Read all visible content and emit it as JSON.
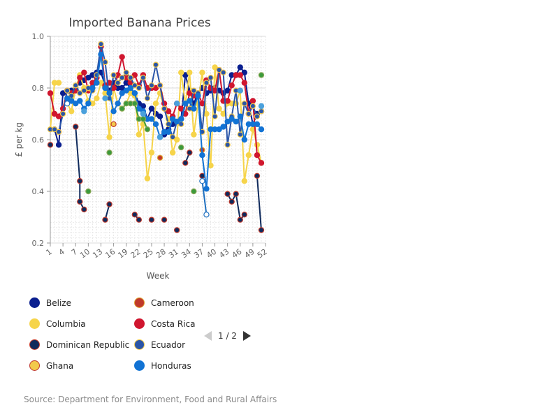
{
  "source": "Source: Department for Environment, Food and Rural Affairs",
  "pager": {
    "text": "1 / 2"
  },
  "chart_data": {
    "type": "line",
    "title": "Imported Banana Prices",
    "xlabel": "Week",
    "ylabel": "£ per kg",
    "xlim": [
      1,
      52
    ],
    "ylim": [
      0.2,
      1.0
    ],
    "x_ticks": [
      1,
      4,
      7,
      10,
      13,
      16,
      19,
      22,
      25,
      28,
      31,
      34,
      37,
      40,
      43,
      46,
      49,
      52
    ],
    "y_ticks": [
      0.2,
      0.4,
      0.6,
      0.8,
      1.0
    ],
    "grid": true,
    "legend_position": "bottom-left",
    "series": [
      {
        "name": "Belize",
        "color": "#0a1f8f",
        "border": "#0a1f8f",
        "points": [
          [
            2,
            0.64
          ],
          [
            3,
            0.58
          ],
          [
            4,
            0.78
          ],
          [
            5,
            0.79
          ],
          [
            6,
            0.79
          ],
          [
            7,
            0.8
          ],
          [
            8,
            0.82
          ],
          [
            9,
            0.83
          ],
          [
            10,
            0.84
          ],
          [
            11,
            0.85
          ],
          [
            12,
            0.86
          ],
          [
            13,
            0.86
          ],
          [
            14,
            0.81
          ],
          [
            15,
            0.79
          ],
          [
            16,
            0.82
          ],
          [
            17,
            0.8
          ],
          [
            18,
            0.8
          ],
          [
            19,
            0.82
          ],
          [
            20,
            0.8
          ],
          [
            21,
            0.78
          ],
          [
            22,
            0.74
          ],
          [
            23,
            0.73
          ],
          [
            24,
            0.68
          ],
          [
            25,
            0.72
          ],
          [
            26,
            0.7
          ],
          [
            27,
            0.69
          ],
          [
            28,
            0.62
          ],
          [
            29,
            0.64
          ],
          [
            30,
            0.66
          ],
          [
            31,
            0.67
          ],
          [
            32,
            0.68
          ],
          [
            33,
            0.85
          ],
          [
            34,
            0.79
          ],
          [
            35,
            0.74
          ],
          [
            36,
            0.78
          ],
          [
            37,
            0.8
          ],
          [
            38,
            0.78
          ],
          [
            39,
            0.79
          ],
          [
            40,
            0.8
          ],
          [
            41,
            0.79
          ],
          [
            42,
            0.78
          ],
          [
            43,
            0.79
          ],
          [
            44,
            0.85
          ],
          [
            45,
            0.85
          ],
          [
            46,
            0.88
          ],
          [
            47,
            0.86
          ],
          [
            48,
            0.74
          ],
          [
            49,
            0.66
          ],
          [
            50,
            0.7
          ],
          [
            51,
            0.71
          ]
        ]
      },
      {
        "name": "Cameroon",
        "color": "#c0392b",
        "border": "#e0a030",
        "points": [
          [
            27,
            0.53
          ],
          [
            37,
            0.56
          ]
        ]
      },
      {
        "name": "Columbia",
        "color": "#f6d44a",
        "border": "#f6d44a",
        "points": [
          [
            1,
            0.64
          ],
          [
            2,
            0.82
          ],
          [
            3,
            0.82
          ],
          [
            5,
            0.74
          ],
          [
            6,
            0.71
          ],
          [
            7,
            0.8
          ],
          [
            8,
            0.85
          ],
          [
            9,
            0.8
          ],
          [
            10,
            0.75
          ],
          [
            11,
            0.74
          ],
          [
            12,
            0.76
          ],
          [
            13,
            0.82
          ],
          [
            14,
            0.78
          ],
          [
            15,
            0.61
          ],
          [
            16,
            0.8
          ],
          [
            17,
            0.74
          ],
          [
            18,
            0.72
          ],
          [
            19,
            0.74
          ],
          [
            20,
            0.78
          ],
          [
            21,
            0.77
          ],
          [
            22,
            0.62
          ],
          [
            23,
            0.66
          ],
          [
            24,
            0.45
          ],
          [
            25,
            0.55
          ],
          [
            26,
            0.74
          ],
          [
            27,
            0.78
          ],
          [
            28,
            0.72
          ],
          [
            29,
            0.68
          ],
          [
            30,
            0.55
          ],
          [
            31,
            0.6
          ],
          [
            32,
            0.86
          ],
          [
            33,
            0.74
          ],
          [
            34,
            0.86
          ],
          [
            35,
            0.62
          ],
          [
            36,
            0.74
          ],
          [
            37,
            0.86
          ],
          [
            38,
            0.7
          ],
          [
            39,
            0.5
          ],
          [
            40,
            0.88
          ],
          [
            41,
            0.72
          ],
          [
            42,
            0.7
          ],
          [
            43,
            0.74
          ],
          [
            44,
            0.74
          ],
          [
            45,
            0.74
          ],
          [
            46,
            0.79
          ],
          [
            47,
            0.44
          ],
          [
            48,
            0.54
          ],
          [
            49,
            0.64
          ],
          [
            50,
            0.58
          ],
          [
            51,
            0.51
          ]
        ]
      },
      {
        "name": "Costa Rica",
        "color": "#d0162f",
        "border": "#d0162f",
        "points": [
          [
            1,
            0.78
          ],
          [
            2,
            0.7
          ],
          [
            3,
            0.69
          ],
          [
            4,
            0.72
          ],
          [
            5,
            0.79
          ],
          [
            6,
            0.78
          ],
          [
            7,
            0.79
          ],
          [
            8,
            0.84
          ],
          [
            9,
            0.86
          ],
          [
            10,
            0.79
          ],
          [
            11,
            0.82
          ],
          [
            12,
            0.84
          ],
          [
            13,
            0.96
          ],
          [
            14,
            0.81
          ],
          [
            15,
            0.82
          ],
          [
            16,
            0.8
          ],
          [
            17,
            0.85
          ],
          [
            18,
            0.92
          ],
          [
            19,
            0.84
          ],
          [
            20,
            0.82
          ],
          [
            21,
            0.85
          ],
          [
            22,
            0.81
          ],
          [
            23,
            0.85
          ],
          [
            24,
            0.8
          ],
          [
            25,
            0.8
          ],
          [
            26,
            0.8
          ],
          [
            27,
            0.81
          ],
          [
            28,
            0.74
          ],
          [
            29,
            0.71
          ],
          [
            30,
            0.69
          ],
          [
            31,
            0.74
          ],
          [
            32,
            0.72
          ],
          [
            33,
            0.7
          ],
          [
            34,
            0.78
          ],
          [
            35,
            0.77
          ],
          [
            36,
            0.78
          ],
          [
            37,
            0.74
          ],
          [
            38,
            0.83
          ],
          [
            39,
            0.8
          ],
          [
            40,
            0.79
          ],
          [
            41,
            0.87
          ],
          [
            42,
            0.75
          ],
          [
            43,
            0.75
          ],
          [
            44,
            0.81
          ],
          [
            45,
            0.85
          ],
          [
            46,
            0.85
          ],
          [
            47,
            0.82
          ],
          [
            48,
            0.7
          ],
          [
            49,
            0.75
          ],
          [
            50,
            0.54
          ],
          [
            51,
            0.51
          ]
        ]
      },
      {
        "name": "Dominican Republic",
        "color": "#0f2a5c",
        "border": "#c0392b",
        "points": [
          [
            1,
            0.58
          ],
          [
            3,
            0.63
          ],
          [
            7,
            0.65
          ],
          [
            8,
            0.44
          ],
          [
            8,
            0.36
          ],
          [
            9,
            0.33
          ],
          [
            14,
            0.29
          ],
          [
            15,
            0.35
          ],
          [
            21,
            0.31
          ],
          [
            22,
            0.29
          ],
          [
            25,
            0.29
          ],
          [
            28,
            0.29
          ],
          [
            31,
            0.25
          ],
          [
            33,
            0.51
          ],
          [
            34,
            0.55
          ],
          [
            37,
            0.46
          ],
          [
            43,
            0.39
          ],
          [
            44,
            0.36
          ],
          [
            45,
            0.39
          ],
          [
            46,
            0.29
          ],
          [
            47,
            0.31
          ],
          [
            50,
            0.46
          ],
          [
            51,
            0.25
          ]
        ]
      },
      {
        "name": "Ecuador",
        "color": "#2a55a8",
        "border": "#f2c94c",
        "points": [
          [
            1,
            0.64
          ],
          [
            2,
            0.64
          ],
          [
            3,
            0.63
          ],
          [
            4,
            0.7
          ],
          [
            5,
            0.79
          ],
          [
            6,
            0.77
          ],
          [
            7,
            0.81
          ],
          [
            8,
            0.78
          ],
          [
            9,
            0.79
          ],
          [
            10,
            0.8
          ],
          [
            11,
            0.79
          ],
          [
            12,
            0.85
          ],
          [
            13,
            0.97
          ],
          [
            14,
            0.9
          ],
          [
            15,
            0.76
          ],
          [
            16,
            0.85
          ],
          [
            17,
            0.82
          ],
          [
            18,
            0.84
          ],
          [
            19,
            0.86
          ],
          [
            20,
            0.84
          ],
          [
            21,
            0.81
          ],
          [
            22,
            0.8
          ],
          [
            23,
            0.84
          ],
          [
            24,
            0.76
          ],
          [
            25,
            0.81
          ],
          [
            26,
            0.89
          ],
          [
            27,
            0.81
          ],
          [
            28,
            0.72
          ],
          [
            29,
            0.66
          ],
          [
            30,
            0.61
          ],
          [
            31,
            0.67
          ],
          [
            32,
            0.66
          ],
          [
            33,
            0.74
          ],
          [
            34,
            0.72
          ],
          [
            35,
            0.79
          ],
          [
            36,
            0.78
          ],
          [
            37,
            0.63
          ],
          [
            38,
            0.82
          ],
          [
            39,
            0.84
          ],
          [
            40,
            0.69
          ],
          [
            41,
            0.87
          ],
          [
            42,
            0.86
          ],
          [
            43,
            0.58
          ],
          [
            44,
            0.69
          ],
          [
            45,
            0.79
          ],
          [
            46,
            0.62
          ],
          [
            47,
            0.74
          ],
          [
            48,
            0.7
          ],
          [
            49,
            0.73
          ],
          [
            50,
            0.69
          ],
          [
            51,
            0.71
          ]
        ]
      },
      {
        "name": "Ghana",
        "color": "#f2c94c",
        "border": "#c0392b",
        "points": [
          [
            16,
            0.66
          ]
        ]
      },
      {
        "name": "Honduras",
        "color": "#1273d4",
        "border": "#1273d4",
        "points": [
          [
            5,
            0.76
          ],
          [
            6,
            0.75
          ],
          [
            7,
            0.74
          ],
          [
            8,
            0.75
          ],
          [
            9,
            0.72
          ],
          [
            10,
            0.74
          ],
          [
            11,
            0.8
          ],
          [
            12,
            0.82
          ],
          [
            13,
            0.93
          ],
          [
            14,
            0.8
          ],
          [
            15,
            0.78
          ],
          [
            16,
            0.71
          ],
          [
            17,
            0.74
          ],
          [
            18,
            0.78
          ],
          [
            19,
            0.79
          ],
          [
            20,
            0.8
          ],
          [
            21,
            0.78
          ],
          [
            22,
            0.72
          ],
          [
            23,
            0.71
          ],
          [
            24,
            0.68
          ],
          [
            25,
            0.68
          ],
          [
            26,
            0.66
          ],
          [
            27,
            0.61
          ],
          [
            28,
            0.63
          ],
          [
            29,
            0.63
          ],
          [
            30,
            0.68
          ],
          [
            31,
            0.67
          ],
          [
            32,
            0.68
          ],
          [
            33,
            0.74
          ],
          [
            34,
            0.75
          ],
          [
            35,
            0.72
          ],
          [
            36,
            0.77
          ],
          [
            37,
            0.54
          ],
          [
            38,
            0.41
          ],
          [
            39,
            0.64
          ],
          [
            40,
            0.64
          ],
          [
            41,
            0.64
          ],
          [
            42,
            0.65
          ],
          [
            43,
            0.67
          ],
          [
            44,
            0.68
          ],
          [
            45,
            0.67
          ],
          [
            46,
            0.69
          ],
          [
            47,
            0.6
          ],
          [
            48,
            0.66
          ],
          [
            49,
            0.66
          ],
          [
            50,
            0.66
          ],
          [
            51,
            0.64
          ]
        ]
      },
      {
        "name": "",
        "color": "#3b9a3b",
        "border": "#8aa85a",
        "points": [
          [
            10,
            0.4
          ],
          [
            15,
            0.55
          ],
          [
            18,
            0.72
          ],
          [
            19,
            0.74
          ],
          [
            20,
            0.74
          ],
          [
            21,
            0.74
          ],
          [
            22,
            0.68
          ],
          [
            23,
            0.68
          ],
          [
            24,
            0.64
          ],
          [
            32,
            0.57
          ],
          [
            35,
            0.4
          ],
          [
            51,
            0.85
          ]
        ]
      },
      {
        "name": "",
        "color": "#4aa0dc",
        "border": "#4aa0dc",
        "points": [
          [
            9,
            0.71
          ],
          [
            14,
            0.76
          ],
          [
            23,
            0.7
          ],
          [
            27,
            0.61
          ],
          [
            31,
            0.74
          ],
          [
            46,
            0.79
          ],
          [
            51,
            0.73
          ]
        ]
      },
      {
        "name": "",
        "color": "#ffffff",
        "border": "#1e6fbf",
        "points": [
          [
            5,
            0.74
          ],
          [
            37,
            0.44
          ],
          [
            38,
            0.31
          ]
        ]
      }
    ]
  }
}
